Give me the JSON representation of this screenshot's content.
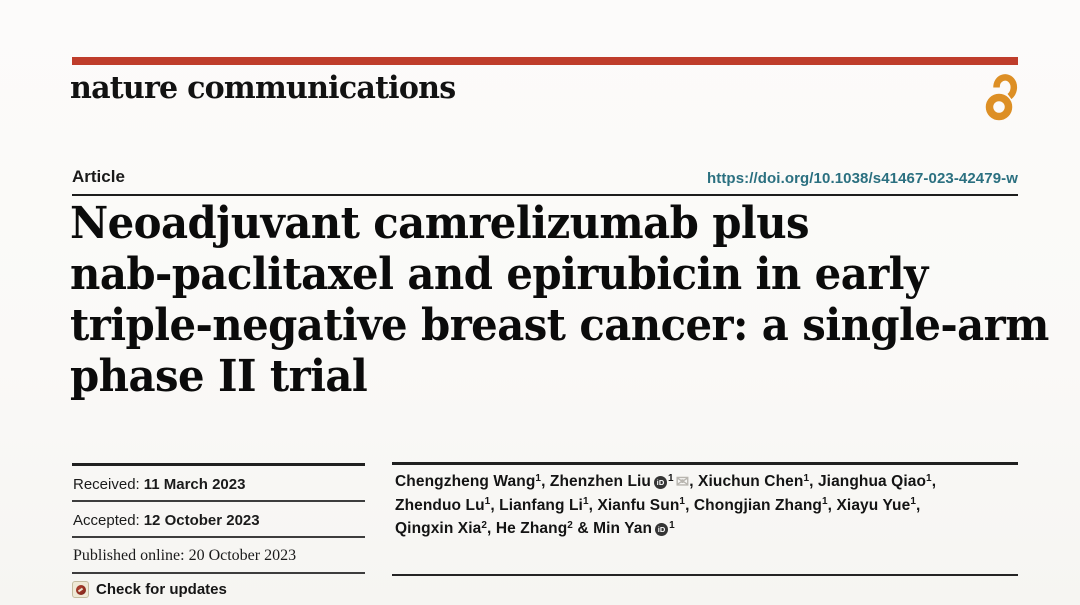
{
  "masthead": {
    "journal": "nature communications",
    "bar_color": "#bf3d2b",
    "open_access_color": "#dd8f25",
    "open_access_icon": "open-access-lock-icon"
  },
  "article": {
    "label": "Article",
    "doi": "https://doi.org/10.1038/s41467-023-42479-w",
    "doi_color": "#2b7080"
  },
  "title": {
    "lines": [
      "Neoadjuvant camrelizumab plus",
      "nab-paclitaxel and epirubicin in early",
      "triple-negative breast cancer: a single-arm",
      "phase II trial"
    ]
  },
  "history": {
    "rows": [
      {
        "label": "Received:",
        "value": "11 March 2023",
        "style": "sans"
      },
      {
        "label": "Accepted:",
        "value": "12 October 2023",
        "style": "sans"
      },
      {
        "label": "Published online:",
        "value": "20 October 2023",
        "style": "serif"
      }
    ],
    "check_updates_label": "Check for updates",
    "crossmark_icon": "crossmark-icon"
  },
  "authors": {
    "orcid_icon_label": "iD",
    "envelope_icon": "✉",
    "lines": [
      [
        {
          "name": "Chengzheng Wang",
          "sup": "1",
          "sep": ", "
        },
        {
          "name": "Zhenzhen Liu",
          "orcid": true,
          "sup": "1",
          "envelope": true,
          "sep": ", "
        },
        {
          "name": "Xiuchun Chen",
          "sup": "1",
          "sep": ", "
        },
        {
          "name": "Jianghua Qiao",
          "sup": "1",
          "sep": ","
        }
      ],
      [
        {
          "name": "Zhenduo Lu",
          "sup": "1",
          "sep": ", "
        },
        {
          "name": "Lianfang Li",
          "sup": "1",
          "sep": ", "
        },
        {
          "name": "Xianfu Sun",
          "sup": "1",
          "sep": ", "
        },
        {
          "name": "Chongjian Zhang",
          "sup": "1",
          "sep": ", "
        },
        {
          "name": "Xiayu Yue",
          "sup": "1",
          "sep": ","
        }
      ],
      [
        {
          "name": "Qingxin Xia",
          "sup": "2",
          "sep": ", "
        },
        {
          "name": "He Zhang",
          "sup": "2",
          "sep": " & "
        },
        {
          "name": "Min Yan",
          "orcid": true,
          "sup": "1",
          "sep": ""
        }
      ]
    ]
  }
}
